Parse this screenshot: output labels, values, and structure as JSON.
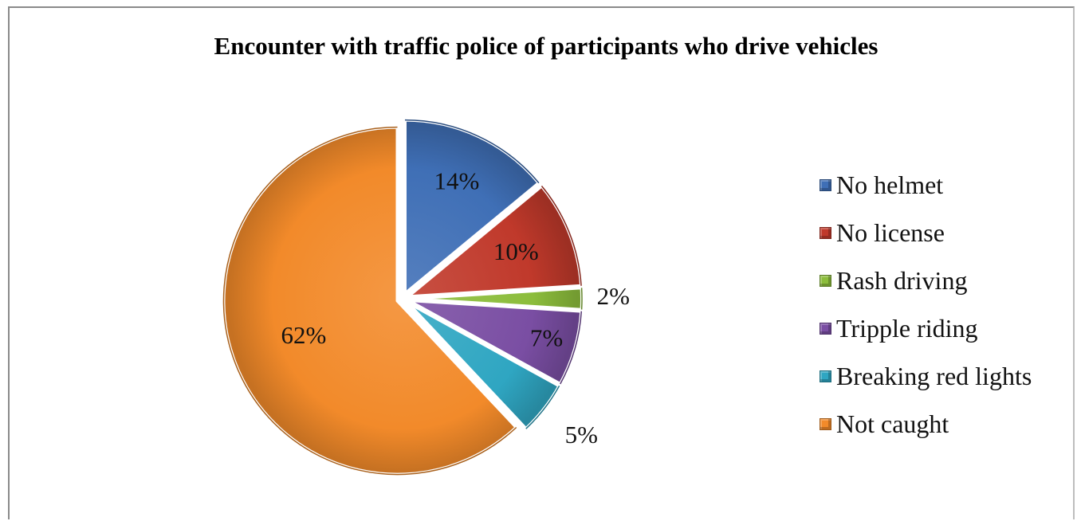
{
  "chart_data": {
    "type": "pie",
    "title": "Encounter with traffic police of participants who drive vehicles",
    "categories": [
      "No helmet",
      "No license",
      "Rash driving",
      "Tripple riding",
      "Breaking red lights",
      "Not caught"
    ],
    "values": [
      14,
      10,
      2,
      7,
      5,
      62
    ],
    "labels": [
      "14%",
      "10%",
      "2%",
      "7%",
      "5%",
      "62%"
    ],
    "colors": [
      "#3f6fb6",
      "#c0392b",
      "#8cbd3c",
      "#7a4ea3",
      "#2fa6c2",
      "#f28a2a"
    ],
    "exploded": true,
    "legend_position": "right"
  }
}
